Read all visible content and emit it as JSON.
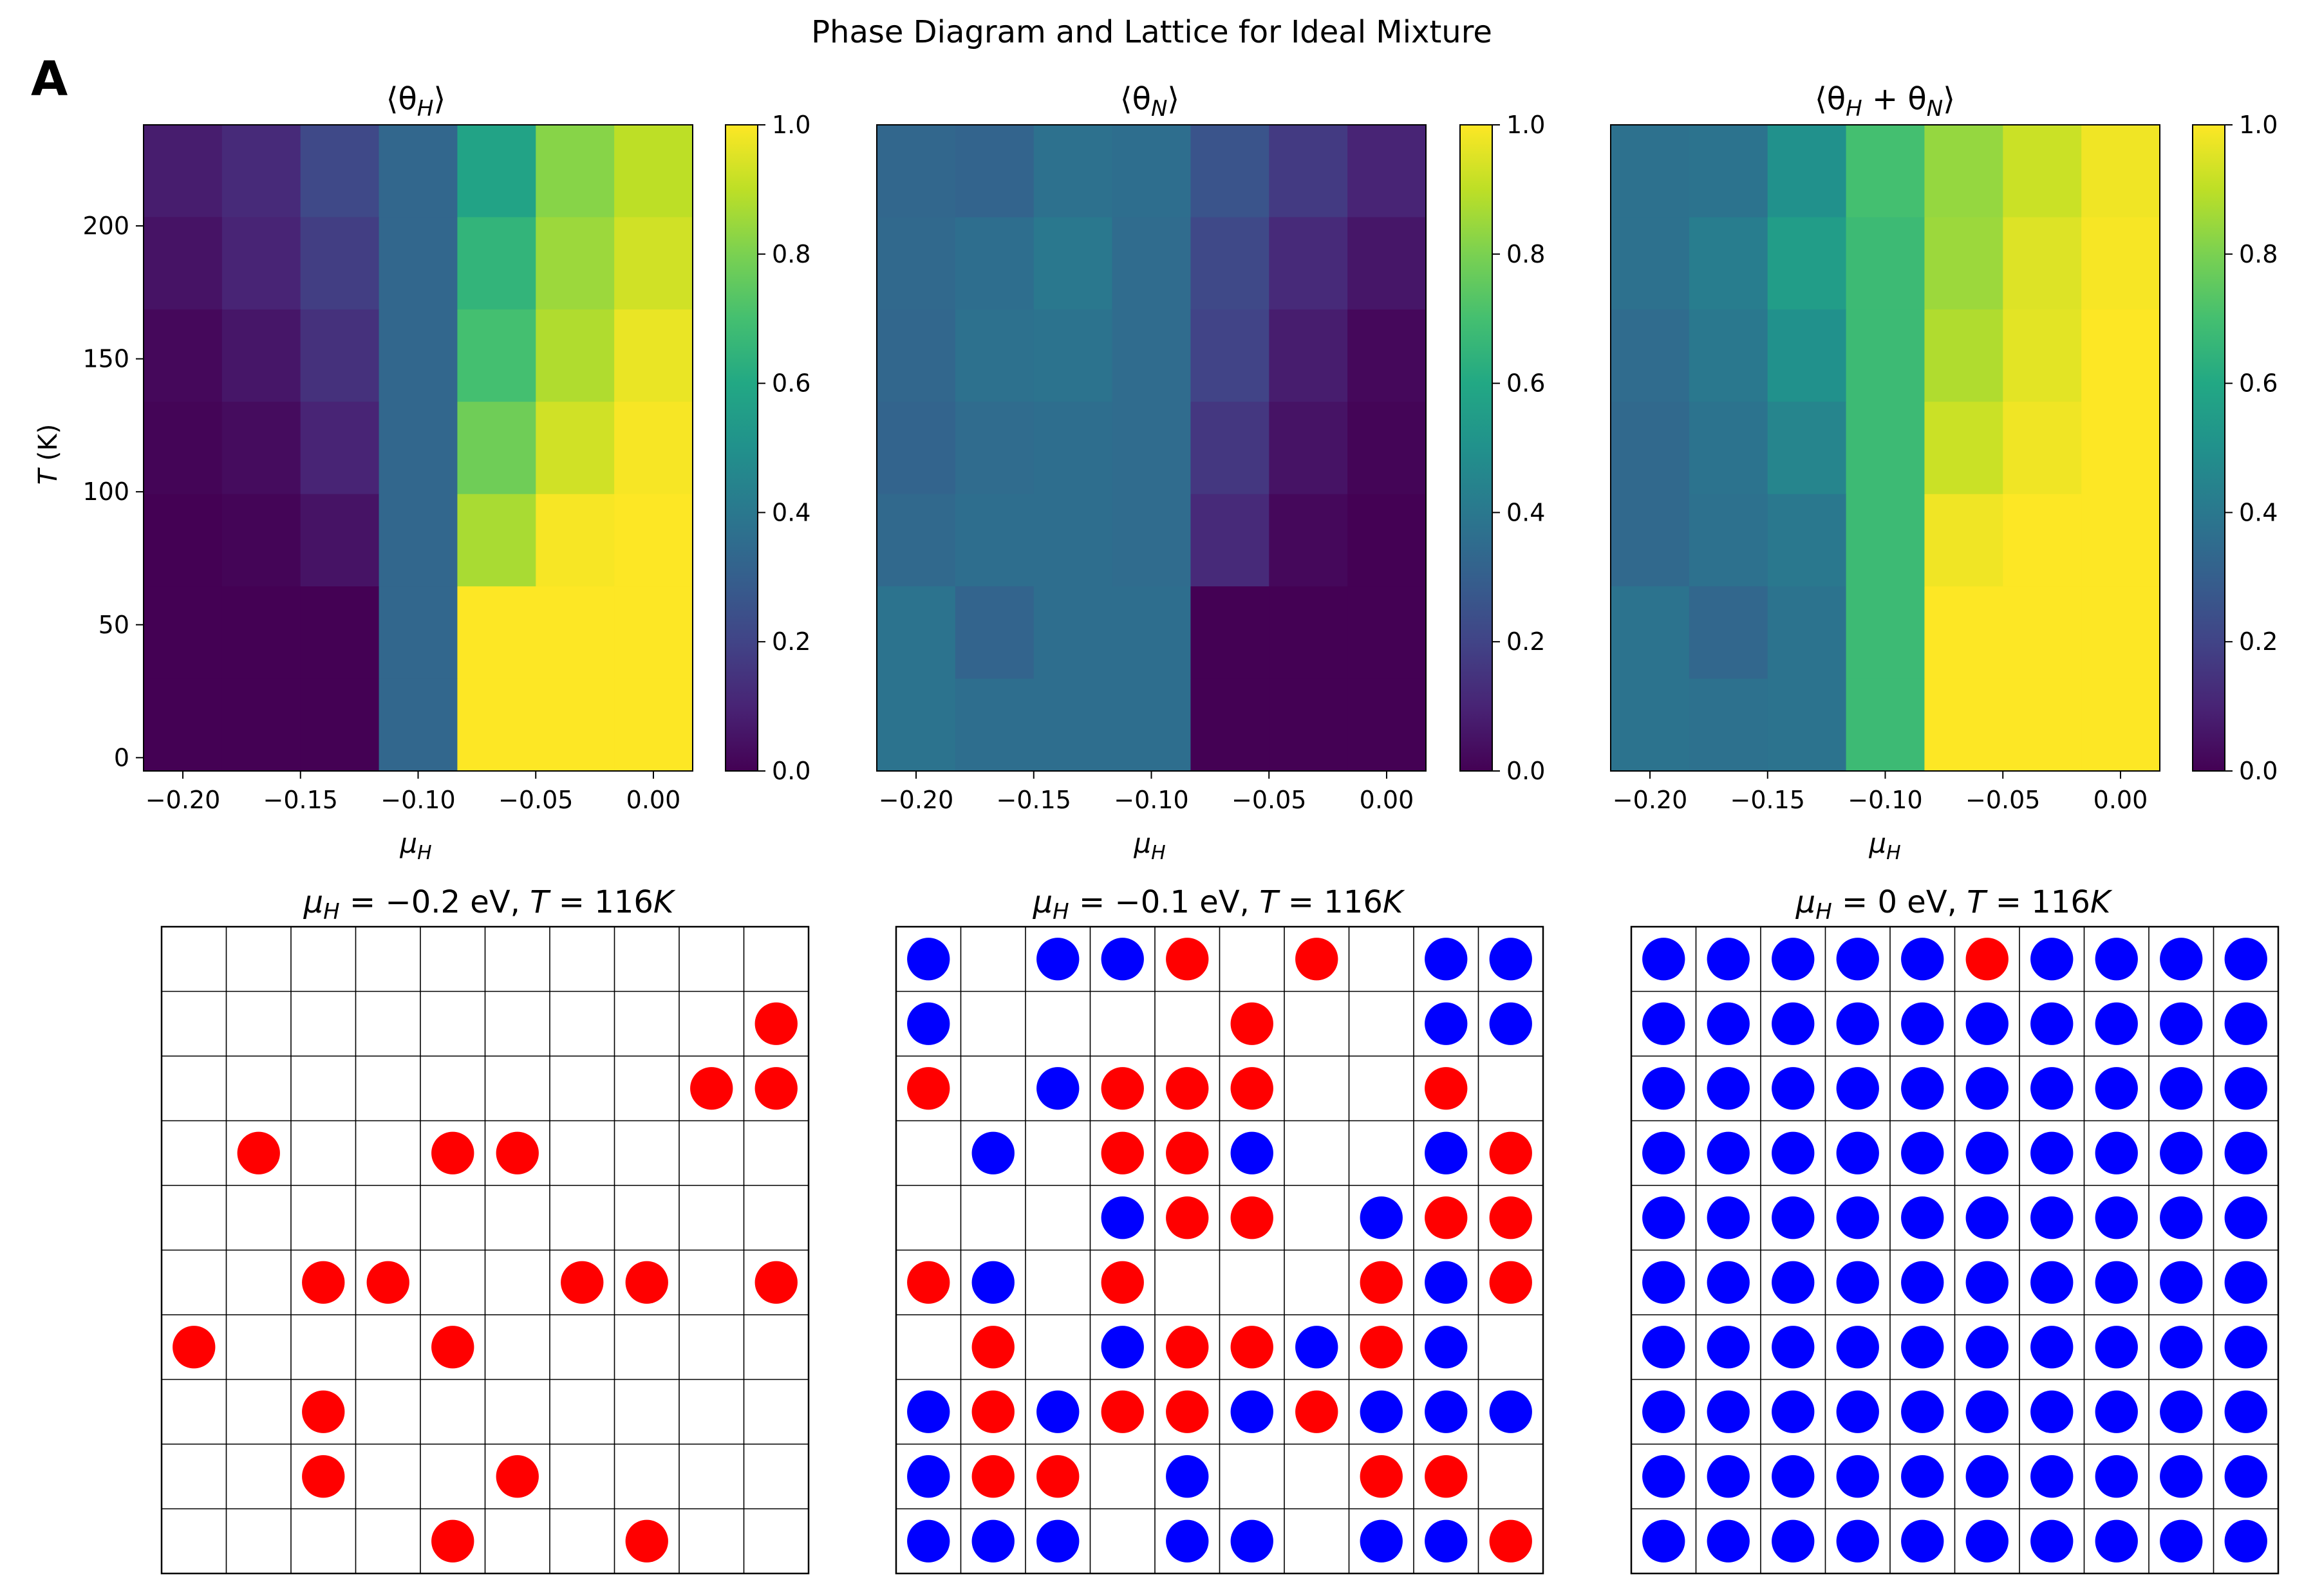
{
  "figure": {
    "title": "Phase Diagram and Lattice for Ideal Mixture",
    "panel_label": "A"
  },
  "chart_data": [
    {
      "type": "heatmap",
      "title": "⟨θ_H⟩",
      "xlabel": "μ_H",
      "ylabel": "T (K)",
      "x": [
        -0.2,
        -0.167,
        -0.133,
        -0.1,
        -0.067,
        -0.033,
        0.0
      ],
      "y": [
        233,
        200,
        167,
        133,
        100,
        67,
        33,
        0
      ],
      "xticks": [
        "−0.20",
        "−0.15",
        "−0.10",
        "−0.05",
        "0.00"
      ],
      "yticks": [
        "0",
        "50",
        "100",
        "150",
        "200"
      ],
      "xlim": [
        -0.2167,
        0.0167
      ],
      "ylim": [
        -5,
        238
      ],
      "colorbar": {
        "range": [
          0.0,
          1.0
        ],
        "ticks": [
          "0.0",
          "0.2",
          "0.4",
          "0.6",
          "0.8",
          "1.0"
        ],
        "colormap": "viridis"
      },
      "values": [
        [
          0.08,
          0.12,
          0.22,
          0.33,
          0.58,
          0.82,
          0.9
        ],
        [
          0.05,
          0.1,
          0.18,
          0.33,
          0.65,
          0.85,
          0.93
        ],
        [
          0.02,
          0.06,
          0.14,
          0.33,
          0.7,
          0.88,
          0.97
        ],
        [
          0.01,
          0.03,
          0.1,
          0.33,
          0.78,
          0.93,
          0.99
        ],
        [
          0.0,
          0.01,
          0.05,
          0.33,
          0.87,
          0.99,
          1.0
        ],
        [
          0.0,
          0.0,
          0.0,
          0.33,
          1.0,
          1.0,
          1.0
        ],
        [
          0.0,
          0.0,
          0.0,
          0.33,
          1.0,
          1.0,
          1.0
        ]
      ]
    },
    {
      "type": "heatmap",
      "title": "⟨θ_N⟩",
      "xlabel": "μ_H",
      "ylabel": "",
      "x": [
        -0.2,
        -0.167,
        -0.133,
        -0.1,
        -0.067,
        -0.033,
        0.0
      ],
      "xticks": [
        "−0.20",
        "−0.15",
        "−0.10",
        "−0.05",
        "0.00"
      ],
      "colorbar": {
        "range": [
          0.0,
          1.0
        ],
        "ticks": [
          "0.0",
          "0.2",
          "0.4",
          "0.6",
          "0.8",
          "1.0"
        ],
        "colormap": "viridis"
      },
      "values": [
        [
          0.33,
          0.32,
          0.37,
          0.36,
          0.26,
          0.17,
          0.1
        ],
        [
          0.34,
          0.36,
          0.4,
          0.35,
          0.22,
          0.12,
          0.06
        ],
        [
          0.33,
          0.37,
          0.38,
          0.35,
          0.2,
          0.08,
          0.02
        ],
        [
          0.32,
          0.35,
          0.36,
          0.35,
          0.16,
          0.05,
          0.01
        ],
        [
          0.34,
          0.36,
          0.36,
          0.35,
          0.12,
          0.02,
          0.0
        ],
        [
          0.38,
          0.32,
          0.36,
          0.36,
          0.0,
          0.0,
          0.0
        ],
        [
          0.38,
          0.36,
          0.36,
          0.36,
          0.0,
          0.0,
          0.0
        ]
      ]
    },
    {
      "type": "heatmap",
      "title": "⟨θ_H + θ_N⟩",
      "xlabel": "μ_H",
      "ylabel": "",
      "x": [
        -0.2,
        -0.167,
        -0.133,
        -0.1,
        -0.067,
        -0.033,
        0.0
      ],
      "xticks": [
        "−0.20",
        "−0.15",
        "−0.10",
        "−0.05",
        "0.00"
      ],
      "colorbar": {
        "range": [
          0.0,
          1.0
        ],
        "ticks": [
          "0.0",
          "0.2",
          "0.4",
          "0.6",
          "0.8",
          "1.0"
        ],
        "colormap": "viridis"
      },
      "values": [
        [
          0.37,
          0.38,
          0.5,
          0.7,
          0.84,
          0.92,
          0.98
        ],
        [
          0.37,
          0.42,
          0.55,
          0.68,
          0.85,
          0.95,
          0.99
        ],
        [
          0.35,
          0.4,
          0.5,
          0.68,
          0.88,
          0.96,
          1.0
        ],
        [
          0.34,
          0.38,
          0.45,
          0.68,
          0.92,
          0.98,
          1.0
        ],
        [
          0.34,
          0.37,
          0.4,
          0.68,
          0.98,
          1.0,
          1.0
        ],
        [
          0.38,
          0.33,
          0.38,
          0.68,
          1.0,
          1.0,
          1.0
        ],
        [
          0.38,
          0.37,
          0.38,
          0.68,
          1.0,
          1.0,
          1.0
        ]
      ]
    },
    {
      "type": "lattice",
      "title": "μ_H = −0.2 eV, T = 116K",
      "colors": {
        "H": "#ff0000",
        "N": "#0000ff"
      },
      "grid": [
        "..........",
        ".........H",
        "........HH",
        ".H..HH....",
        "..........",
        "..HH..HH.H",
        "H...H.....",
        "..H.......",
        "..H..H....",
        "....H..H.."
      ]
    },
    {
      "type": "lattice",
      "title": "μ_H = −0.1 eV, T = 116K",
      "colors": {
        "H": "#ff0000",
        "N": "#0000ff"
      },
      "grid": [
        "N.NNH.H.NN",
        "N....H..NN",
        "H.NHHH..H.",
        ".N.HHN..NH",
        "...NHH.NHH",
        "HN.H...HNH",
        ".H.NHHNHN.",
        "NHNHHNHNNN",
        "NHH.N..HH.",
        "NNN.NN.NNH"
      ]
    },
    {
      "type": "lattice",
      "title": "μ_H = 0 eV, T = 116K",
      "colors": {
        "H": "#ff0000",
        "N": "#0000ff"
      },
      "grid": [
        "NNNNNHNNNN",
        "NNNNNNNNNN",
        "NNNNNNNNNN",
        "NNNNNNNNNN",
        "NNNNNNNNNN",
        "NNNNNNNNNN",
        "NNNNNNNNNN",
        "NNNNNNNNNN",
        "NNNNNNNNNN",
        "NNNNNNNNNN"
      ]
    }
  ]
}
